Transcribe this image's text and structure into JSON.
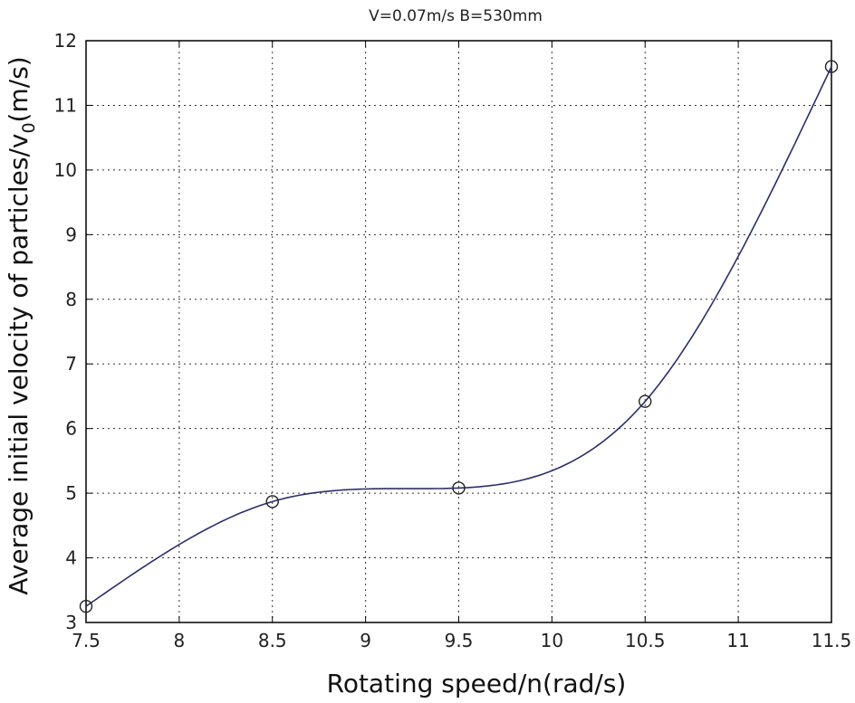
{
  "chart_data": {
    "type": "line",
    "title": "V=0.07m/s B=530mm",
    "xlabel": "Rotating speed/n(rad/s)",
    "ylabel": "Average initial velocity of particles/v",
    "ylabel_sub": "0",
    "ylabel_tail": "(m/s)",
    "xlim": [
      7.5,
      11.5
    ],
    "ylim": [
      3,
      12
    ],
    "x_ticks": [
      "7.5",
      "8",
      "8.5",
      "9",
      "9.5",
      "10",
      "10.5",
      "11",
      "11.5"
    ],
    "y_ticks": [
      "3",
      "4",
      "5",
      "6",
      "7",
      "8",
      "9",
      "10",
      "11",
      "12"
    ],
    "grid": true,
    "series": [
      {
        "marker": "circle",
        "color": "#2b2f6b",
        "x": [
          7.5,
          8.5,
          9.5,
          10.5,
          11.5
        ],
        "y": [
          3.25,
          4.87,
          5.08,
          6.42,
          11.6
        ]
      }
    ]
  }
}
